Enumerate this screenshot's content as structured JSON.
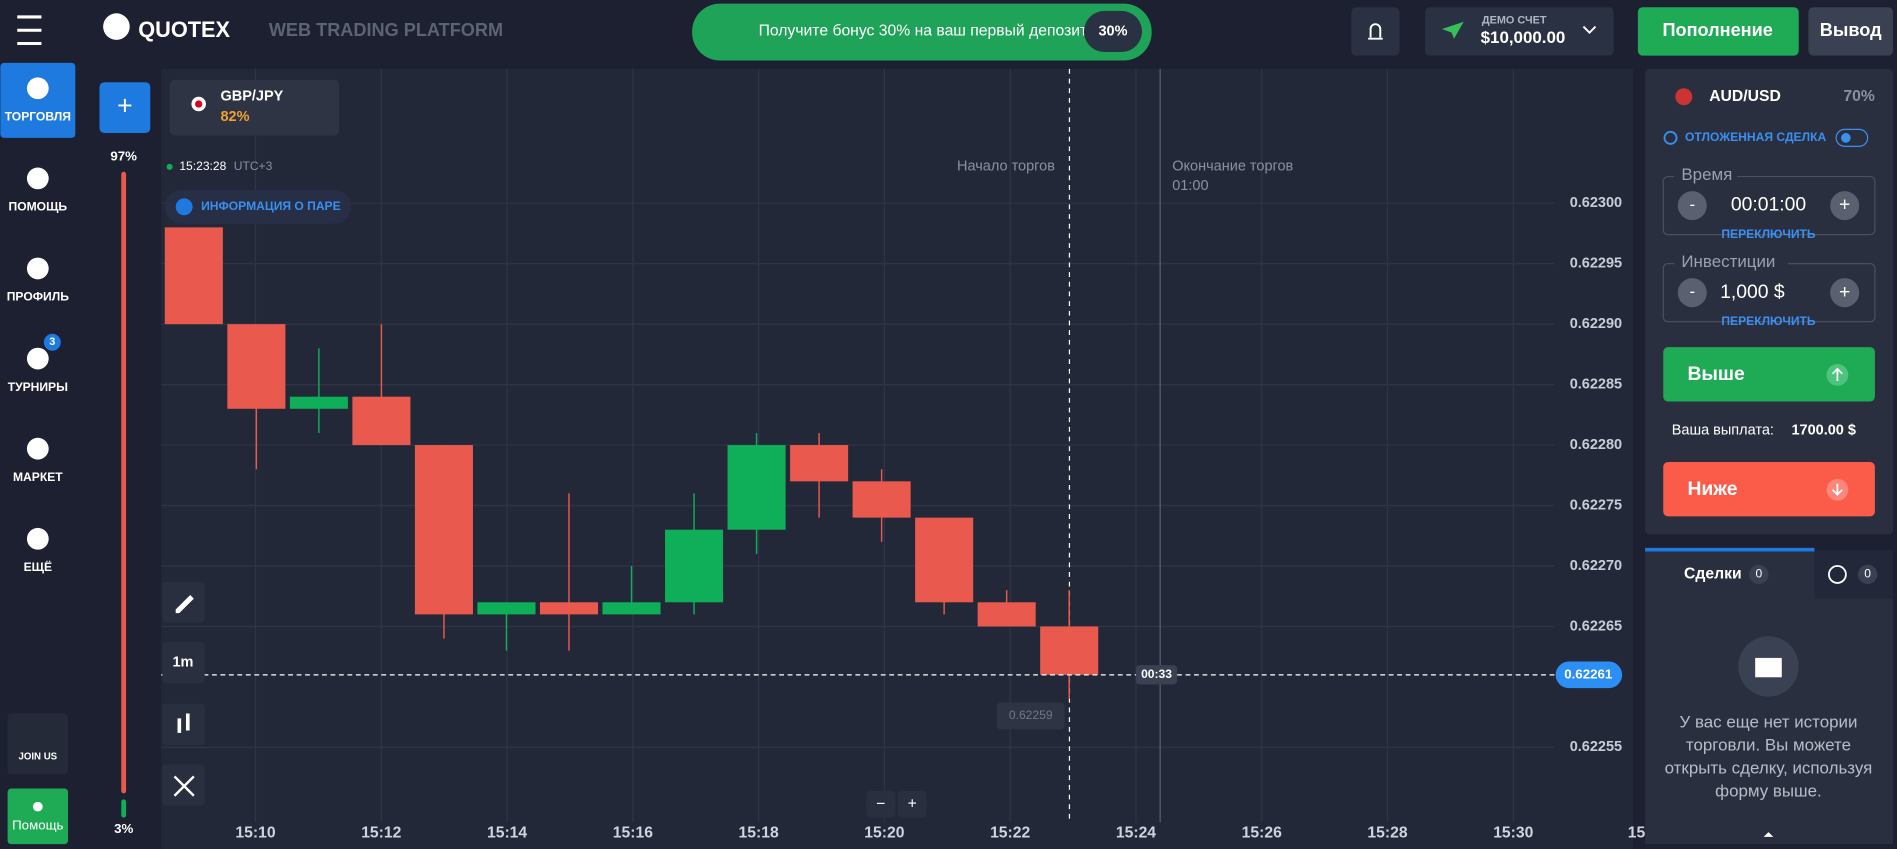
{
  "header": {
    "logo": "QUOTEX",
    "subtitle": "WEB TRADING PLATFORM",
    "promo": "Получите бонус 30% на ваш первый депозит",
    "promo_badge": "30%",
    "account_label": "ДЕМО СЧЕТ",
    "balance": "$10,000.00",
    "deposit": "Пополнение",
    "withdraw": "Вывод"
  },
  "sidebar": {
    "items": [
      "ТОРГОВЛЯ",
      "ПОМОЩЬ",
      "ПРОФИЛЬ",
      "ТУРНИРЫ",
      "МАРКЕТ",
      "ЕЩЁ"
    ],
    "tournaments_badge": "3",
    "join": "JOIN US",
    "help": "Помощь"
  },
  "sentiment": {
    "top": "97%",
    "bottom": "3%"
  },
  "asset_tab": {
    "name": "GBP/JPY",
    "payout": "82%",
    "add": "+"
  },
  "chart_info": {
    "time": "15:23:28",
    "timezone": "UTC+3",
    "info": "ИНФОРМАЦИЯ О ПАРЕ",
    "start": "Начало торгов",
    "end": "Окончание торгов",
    "end_time": "01:00",
    "timeframe": "1m",
    "timer": "00:33",
    "zoom_out": "−",
    "zoom_in": "+",
    "current_price": "0.62261",
    "low_price": "0.62259"
  },
  "chart_data": {
    "type": "candlestick",
    "up_color": "#0faf59",
    "down_color": "#e9594d",
    "grid": true,
    "ylim": [
      0.622488,
      0.623111
    ],
    "yticks": [
      {
        "value": 0.623,
        "label": "0.62300"
      },
      0.62295,
      {
        "value": 0.6229,
        "label": "0.62290"
      },
      0.62285,
      {
        "value": 0.6228,
        "label": "0.62280"
      },
      0.62275,
      {
        "value": 0.6227,
        "label": "0.62270"
      },
      0.62265,
      0.62255
    ],
    "xticks": [
      "15:10",
      "15:12",
      "15:14",
      "15:16",
      "15:18",
      "15:20",
      "15:22",
      "15:24",
      "15:26",
      "15:28",
      "15:30",
      "15:"
    ],
    "candles": [
      {
        "open": 0.62298,
        "high": 0.62298,
        "low": 0.6229,
        "close": 0.6229
      },
      {
        "open": 0.6229,
        "high": 0.6229,
        "low": 0.62278,
        "close": 0.62283
      },
      {
        "open": 0.62283,
        "high": 0.62288,
        "low": 0.62281,
        "close": 0.62284
      },
      {
        "open": 0.62284,
        "high": 0.6229,
        "low": 0.6228,
        "close": 0.6228
      },
      {
        "open": 0.6228,
        "high": 0.6228,
        "low": 0.62264,
        "close": 0.62266
      },
      {
        "open": 0.62266,
        "high": 0.62267,
        "low": 0.62263,
        "close": 0.62267
      },
      {
        "open": 0.62267,
        "high": 0.62276,
        "low": 0.62263,
        "close": 0.62266
      },
      {
        "open": 0.62266,
        "high": 0.6227,
        "low": 0.62266,
        "close": 0.62267
      },
      {
        "open": 0.62267,
        "high": 0.62276,
        "low": 0.62266,
        "close": 0.62273
      },
      {
        "open": 0.62273,
        "high": 0.62281,
        "low": 0.62271,
        "close": 0.6228
      },
      {
        "open": 0.6228,
        "high": 0.62281,
        "low": 0.62274,
        "close": 0.62277
      },
      {
        "open": 0.62277,
        "high": 0.62278,
        "low": 0.62272,
        "close": 0.62274
      },
      {
        "open": 0.62274,
        "high": 0.62274,
        "low": 0.62266,
        "close": 0.62267
      },
      {
        "open": 0.62267,
        "high": 0.62268,
        "low": 0.62265,
        "close": 0.62265
      },
      {
        "open": 0.62265,
        "high": 0.62268,
        "low": 0.62259,
        "close": 0.62261
      }
    ]
  },
  "panel": {
    "asset": "AUD/USD",
    "payout": "70%",
    "pending": "ОТЛОЖЕННАЯ СДЕЛКА",
    "time_label": "Время",
    "time_value": "00:01:00",
    "switch": "ПЕРЕКЛЮЧИТЬ",
    "invest_label": "Инвестиции",
    "invest_value": "1,000 $",
    "minus": "-",
    "plus": "+",
    "up": "Выше",
    "payout_label": "Ваша выплата:",
    "payout_value": "1700.00 $",
    "down": "Ниже"
  },
  "trades": {
    "tab": "Сделки",
    "count": "0",
    "history_count": "0",
    "empty": [
      "У вас еще нет истории",
      "торговли. Вы можете",
      "открыть сделку, используя",
      "форму выше."
    ]
  }
}
